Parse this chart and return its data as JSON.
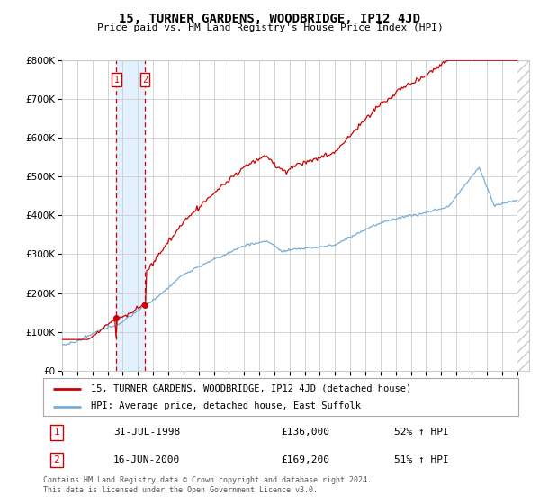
{
  "title": "15, TURNER GARDENS, WOODBRIDGE, IP12 4JD",
  "subtitle": "Price paid vs. HM Land Registry's House Price Index (HPI)",
  "ylim": [
    0,
    800000
  ],
  "xlim_start": 1995.0,
  "xlim_end": 2025.8,
  "sale1_date": 1998.58,
  "sale1_price": 136000,
  "sale1_label": "1",
  "sale1_text": "31-JUL-1998",
  "sale1_amount": "£136,000",
  "sale1_hpi": "52% ↑ HPI",
  "sale2_date": 2000.46,
  "sale2_price": 169200,
  "sale2_label": "2",
  "sale2_text": "16-JUN-2000",
  "sale2_amount": "£169,200",
  "sale2_hpi": "51% ↑ HPI",
  "red_line_color": "#cc0000",
  "blue_line_color": "#7aadd4",
  "grid_color": "#cccccc",
  "background_color": "#ffffff",
  "legend1_text": "15, TURNER GARDENS, WOODBRIDGE, IP12 4JD (detached house)",
  "legend2_text": "HPI: Average price, detached house, East Suffolk",
  "footer_text": "Contains HM Land Registry data © Crown copyright and database right 2024.\nThis data is licensed under the Open Government Licence v3.0.",
  "highlight_color": "#ddeeff"
}
